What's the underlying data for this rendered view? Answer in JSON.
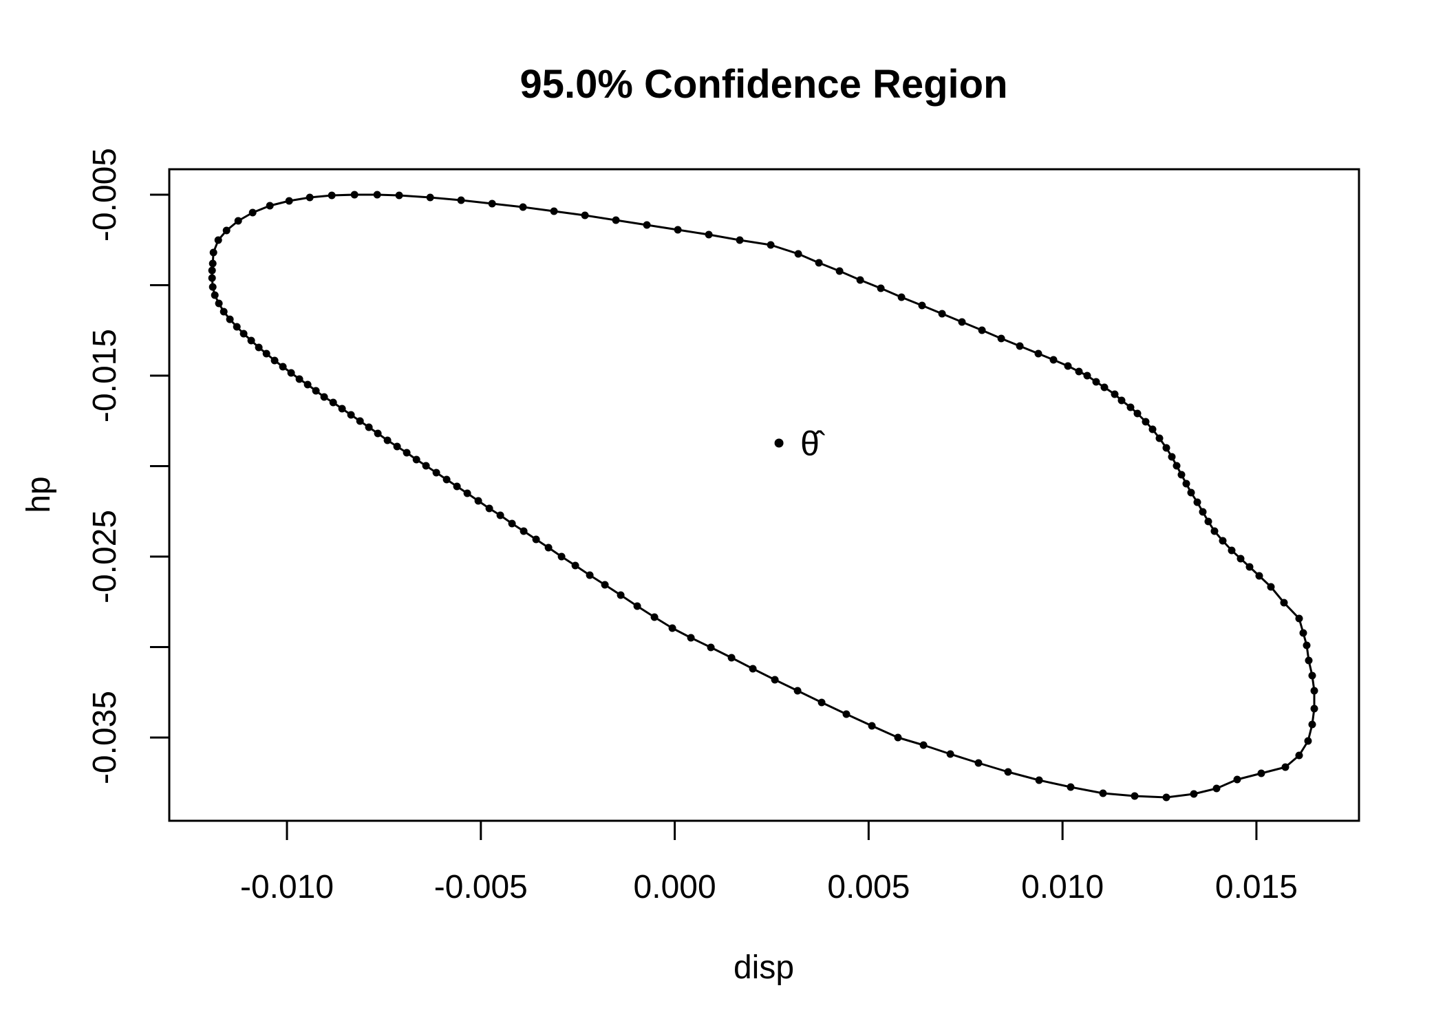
{
  "chart_data": {
    "type": "scatter",
    "title": "95.0% Confidence Region",
    "confidence_level": "95.0%",
    "grid": false,
    "legend": "none",
    "colors": {
      "foreground": "#000000",
      "background": "#ffffff"
    },
    "x_axis": {
      "title": "disp",
      "range": [
        -0.013035,
        0.017645
      ],
      "tick_values": [
        -0.01,
        -0.005,
        0.0,
        0.005,
        0.01,
        0.015
      ],
      "tick_labels": [
        "-0.010",
        "-0.005",
        "0.000",
        "0.005",
        "0.010",
        "0.015"
      ]
    },
    "y_axis": {
      "title": "hp",
      "range": [
        -0.039601,
        -0.003593
      ],
      "tick_values": [
        -0.005,
        -0.01,
        -0.015,
        -0.02,
        -0.025,
        -0.03,
        -0.035
      ],
      "tick_labels": [
        "-0.005",
        "",
        "-0.015",
        "",
        "-0.025",
        "",
        "-0.035"
      ]
    },
    "estimate": {
      "x": 0.002688,
      "y": -0.018726,
      "label": "θ̂"
    },
    "region_boundary": [
      [
        -0.011914,
        -0.008802
      ],
      [
        -0.011896,
        -0.008194
      ],
      [
        -0.011772,
        -0.00751
      ],
      [
        -0.011559,
        -0.006977
      ],
      [
        -0.011257,
        -0.006445
      ],
      [
        -0.010885,
        -0.005989
      ],
      [
        -0.010441,
        -0.005608
      ],
      [
        -0.009944,
        -0.005342
      ],
      [
        -0.009412,
        -0.005152
      ],
      [
        -0.008844,
        -0.005038
      ],
      [
        -0.008259,
        -0.005
      ],
      [
        -0.007673,
        -0.005
      ],
      [
        -0.007106,
        -0.005038
      ],
      [
        -0.006307,
        -0.005152
      ],
      [
        -0.005509,
        -0.005304
      ],
      [
        -0.00471,
        -0.005494
      ],
      [
        -0.003912,
        -0.005684
      ],
      [
        -0.003114,
        -0.005913
      ],
      [
        -0.002315,
        -0.006141
      ],
      [
        -0.001517,
        -0.006407
      ],
      [
        -0.000719,
        -0.006673
      ],
      [
        8e-05,
        -0.006939
      ],
      [
        0.000878,
        -0.007205
      ],
      [
        0.001677,
        -0.007509
      ],
      [
        0.002475,
        -0.007776
      ],
      [
        0.003185,
        -0.00827
      ],
      [
        0.003717,
        -0.008764
      ],
      [
        0.004249,
        -0.009221
      ],
      [
        0.004782,
        -0.009715
      ],
      [
        0.005314,
        -0.010171
      ],
      [
        0.005846,
        -0.010665
      ],
      [
        0.006378,
        -0.011122
      ],
      [
        0.006893,
        -0.011578
      ],
      [
        0.007407,
        -0.012034
      ],
      [
        0.007922,
        -0.012491
      ],
      [
        0.008419,
        -0.012947
      ],
      [
        0.008898,
        -0.013365
      ],
      [
        0.009377,
        -0.013783
      ],
      [
        0.009767,
        -0.014126
      ],
      [
        0.010139,
        -0.014468
      ],
      [
        0.010423,
        -0.014772
      ],
      [
        0.010636,
        -0.015
      ],
      [
        0.010867,
        -0.015342
      ],
      [
        0.01108,
        -0.015647
      ],
      [
        0.011346,
        -0.016027
      ],
      [
        0.011523,
        -0.016369
      ],
      [
        0.011754,
        -0.016749
      ],
      [
        0.011931,
        -0.017092
      ],
      [
        0.012144,
        -0.017548
      ],
      [
        0.012322,
        -0.017966
      ],
      [
        0.012499,
        -0.01846
      ],
      [
        0.012677,
        -0.018993
      ],
      [
        0.012819,
        -0.019487
      ],
      [
        0.012943,
        -0.019981
      ],
      [
        0.013067,
        -0.020476
      ],
      [
        0.013191,
        -0.02097
      ],
      [
        0.013315,
        -0.021464
      ],
      [
        0.013475,
        -0.021997
      ],
      [
        0.013617,
        -0.022529
      ],
      [
        0.013759,
        -0.023061
      ],
      [
        0.013919,
        -0.023594
      ],
      [
        0.014132,
        -0.024126
      ],
      [
        0.014362,
        -0.024658
      ],
      [
        0.014593,
        -0.025115
      ],
      [
        0.014824,
        -0.025571
      ],
      [
        0.015072,
        -0.026065
      ],
      [
        0.015374,
        -0.026674
      ],
      [
        0.015711,
        -0.027548
      ],
      [
        0.016101,
        -0.028423
      ],
      [
        0.016208,
        -0.029221
      ],
      [
        0.016296,
        -0.029906
      ],
      [
        0.01635,
        -0.030742
      ],
      [
        0.016438,
        -0.031579
      ],
      [
        0.016491,
        -0.032415
      ],
      [
        0.016491,
        -0.033404
      ],
      [
        0.016438,
        -0.034278
      ],
      [
        0.016332,
        -0.035191
      ],
      [
        0.016101,
        -0.035989
      ],
      [
        0.015746,
        -0.036636
      ],
      [
        0.015125,
        -0.036978
      ],
      [
        0.014504,
        -0.03732
      ],
      [
        0.013972,
        -0.037815
      ],
      [
        0.013386,
        -0.038119
      ],
      [
        0.012677,
        -0.038309
      ],
      [
        0.011861,
        -0.038233
      ],
      [
        0.011044,
        -0.038081
      ],
      [
        0.010211,
        -0.037739
      ],
      [
        0.009395,
        -0.037358
      ],
      [
        0.008596,
        -0.036902
      ],
      [
        0.007833,
        -0.036408
      ],
      [
        0.007106,
        -0.035914
      ],
      [
        0.006414,
        -0.035419
      ],
      [
        0.005757,
        -0.035001
      ],
      [
        0.005083,
        -0.034355
      ],
      [
        0.004426,
        -0.033708
      ],
      [
        0.003788,
        -0.033062
      ],
      [
        0.003167,
        -0.032415
      ],
      [
        0.002581,
        -0.031807
      ],
      [
        0.002014,
        -0.031199
      ],
      [
        0.001464,
        -0.030591
      ],
      [
        0.000931,
        -0.03002
      ],
      [
        0.000417,
        -0.029488
      ],
      [
        -6.2e-05,
        -0.028956
      ],
      [
        -0.000523,
        -0.028347
      ],
      [
        -0.000967,
        -0.027739
      ],
      [
        -0.001393,
        -0.027131
      ],
      [
        -0.001801,
        -0.02656
      ],
      [
        -0.002191,
        -0.026028
      ],
      [
        -0.002564,
        -0.025495
      ],
      [
        -0.002919,
        -0.025001
      ],
      [
        -0.003256,
        -0.024507
      ],
      [
        -0.003575,
        -0.02405
      ],
      [
        -0.003895,
        -0.023594
      ],
      [
        -0.004196,
        -0.023176
      ],
      [
        -0.004498,
        -0.02272
      ],
      [
        -0.004782,
        -0.022339
      ],
      [
        -0.005066,
        -0.021921
      ],
      [
        -0.00535,
        -0.021503
      ],
      [
        -0.005616,
        -0.021123
      ],
      [
        -0.005882,
        -0.020742
      ],
      [
        -0.006148,
        -0.020362
      ],
      [
        -0.006414,
        -0.019982
      ],
      [
        -0.006662,
        -0.01964
      ],
      [
        -0.006911,
        -0.019259
      ],
      [
        -0.007159,
        -0.018917
      ],
      [
        -0.007408,
        -0.018575
      ],
      [
        -0.007656,
        -0.018195
      ],
      [
        -0.007887,
        -0.017853
      ],
      [
        -0.008117,
        -0.01751
      ],
      [
        -0.008348,
        -0.017168
      ],
      [
        -0.008579,
        -0.016826
      ],
      [
        -0.008809,
        -0.016484
      ],
      [
        -0.00904,
        -0.01618
      ],
      [
        -0.009253,
        -0.015838
      ],
      [
        -0.009466,
        -0.015495
      ],
      [
        -0.009679,
        -0.015191
      ],
      [
        -0.009892,
        -0.014849
      ],
      [
        -0.010105,
        -0.014507
      ],
      [
        -0.010318,
        -0.014165
      ],
      [
        -0.01053,
        -0.013784
      ],
      [
        -0.010726,
        -0.013442
      ],
      [
        -0.010921,
        -0.013062
      ],
      [
        -0.011116,
        -0.012682
      ],
      [
        -0.011293,
        -0.012302
      ],
      [
        -0.011471,
        -0.011884
      ],
      [
        -0.01163,
        -0.011465
      ],
      [
        -0.011755,
        -0.011009
      ],
      [
        -0.011861,
        -0.010553
      ],
      [
        -0.011914,
        -0.010097
      ],
      [
        -0.011932,
        -0.009603
      ],
      [
        -0.011932,
        -0.009185
      ]
    ]
  }
}
